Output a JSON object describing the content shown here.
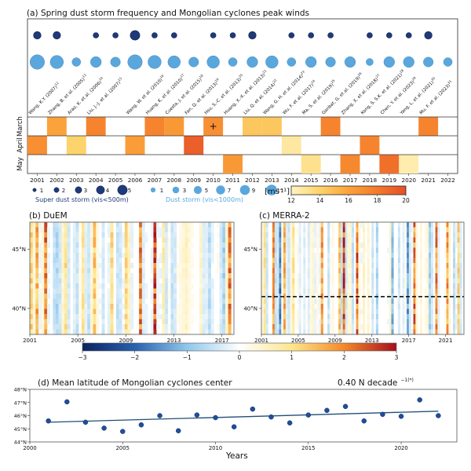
{
  "chart_data": [
    {
      "id": "a",
      "type": "heatmap",
      "title": "(a) Spring dust storm frequency and Mongolian cyclones peak winds",
      "years": [
        2001,
        2002,
        2003,
        2004,
        2005,
        2006,
        2007,
        2008,
        2009,
        2010,
        2011,
        2012,
        2013,
        2014,
        2015,
        2016,
        2017,
        2018,
        2019,
        2020,
        2021,
        2022
      ],
      "months": [
        "March",
        "April",
        "May"
      ],
      "peak_winds_ms": {
        "March": [
          null,
          16,
          null,
          17.5,
          null,
          null,
          17.5,
          16.5,
          null,
          17,
          null,
          14.5,
          14.5,
          null,
          null,
          17.5,
          null,
          null,
          null,
          null,
          17.5,
          null
        ],
        "April": [
          17,
          null,
          14,
          null,
          null,
          16.3,
          null,
          null,
          19.3,
          null,
          null,
          null,
          null,
          12.8,
          null,
          null,
          null,
          17.5,
          null,
          null,
          null,
          null
        ],
        "May": [
          null,
          null,
          null,
          null,
          null,
          null,
          null,
          null,
          null,
          null,
          16.5,
          null,
          null,
          null,
          13.2,
          null,
          17.3,
          null,
          18.5,
          12.5,
          null,
          null
        ]
      },
      "march_2010_marker": "+",
      "super_dust_storm_counts": [
        2,
        2,
        null,
        1,
        1,
        3,
        1,
        1,
        null,
        1,
        1,
        2,
        null,
        1,
        1,
        1,
        null,
        1,
        1,
        1,
        2,
        null
      ],
      "dust_storm_counts": [
        9,
        7,
        2,
        4,
        3,
        9,
        7,
        6,
        3,
        6,
        2,
        4,
        6,
        2,
        4,
        3,
        4,
        1,
        4,
        4,
        3,
        2
      ],
      "citations": [
        {
          "year": 2001,
          "label": "Wang, K.Y. (2007)",
          "ref": "12"
        },
        {
          "year": 2002,
          "label": "Zhang, B. et al. (2005)",
          "ref": "13"
        },
        {
          "year": 2003,
          "label": "Arao, K. et al. (2006)",
          "ref": "14"
        },
        {
          "year": 2004,
          "label": "Liu, J.-J. et al. (2007)",
          "ref": "15"
        },
        {
          "year": 2006,
          "label": "Wang, W. et al. (2010)",
          "ref": "16"
        },
        {
          "year": 2007,
          "label": "Huang, K. et al. (2010)",
          "ref": "17"
        },
        {
          "year": 2008,
          "label": "Cuesta, J. et al. (2015)",
          "ref": "18"
        },
        {
          "year": 2009,
          "label": "Fan, Q. et al. (2013)",
          "ref": "19"
        },
        {
          "year": 2010,
          "label": "Hsu, S.-C. et al. (2013)",
          "ref": "20"
        },
        {
          "year": 2011,
          "label": "Huang, X.-X. et al. (2013)",
          "ref": "21"
        },
        {
          "year": 2012,
          "label": "Liu, Q. et al. (2014)",
          "ref": "22"
        },
        {
          "year": 2013,
          "label": "Wang, G. H. et al. (2014)",
          "ref": "23"
        },
        {
          "year": 2014,
          "label": "Wu, F. et al. (2017)",
          "ref": "24"
        },
        {
          "year": 2015,
          "label": "Ma, S. et al. (2019)",
          "ref": "25"
        },
        {
          "year": 2016,
          "label": "Ganbat, G. et al. (2019)",
          "ref": "26"
        },
        {
          "year": 2017,
          "label": "Zhang, X. et al. (2018)",
          "ref": "27"
        },
        {
          "year": 2018,
          "label": "Kong, S. S.K. et al. (2021)",
          "ref": "28"
        },
        {
          "year": 2019,
          "label": "Chen, Y. et al. (2023)",
          "ref": "29"
        },
        {
          "year": 2020,
          "label": "Yang, L. et al. (2021)",
          "ref": "30"
        },
        {
          "year": 2021,
          "label": "Mu, F. et al. (2023)",
          "ref": "31"
        }
      ],
      "legend_super": {
        "sizes": [
          1,
          2,
          3,
          4,
          5
        ],
        "title": "Super dust storm (vis<500m)",
        "color": "#1f3a7a"
      },
      "legend_dust": {
        "sizes": [
          1,
          3,
          5,
          7,
          9,
          11
        ],
        "title": "Dust storm (vis<1000m)",
        "color": "#5aa7dd"
      },
      "colorbar": {
        "label": "[ms⁻¹]",
        "min": 12,
        "max": 20,
        "ticks": [
          12,
          14,
          16,
          18,
          20
        ],
        "colors": [
          "#fff5c4",
          "#fdd36b",
          "#fba33a",
          "#f47a2a",
          "#e4502a"
        ]
      }
    },
    {
      "id": "b",
      "type": "heatmap",
      "title": "(b) DuEM",
      "x_range": [
        2001,
        2018
      ],
      "x_ticks": [
        "2001",
        "2005",
        "2009",
        "2013",
        "2017"
      ],
      "y_ticks": [
        "40°N",
        "45°N"
      ],
      "y_range_deg": [
        37.8,
        47.3
      ],
      "anomaly_columns": [
        {
          "x": 2001.0,
          "mean": 1.3
        },
        {
          "x": 2001.5,
          "mean": 1.8
        },
        {
          "x": 2002.3,
          "mean": 2.3
        },
        {
          "x": 2002.8,
          "mean": -0.6
        },
        {
          "x": 2003.2,
          "mean": -0.8
        },
        {
          "x": 2003.8,
          "mean": 1.2
        },
        {
          "x": 2005.2,
          "mean": 1.0
        },
        {
          "x": 2006.3,
          "mean": 1.5
        },
        {
          "x": 2007.6,
          "mean": 1.2
        },
        {
          "x": 2008.9,
          "mean": 1.2
        },
        {
          "x": 2010.1,
          "mean": 2.4
        },
        {
          "x": 2011.3,
          "mean": 2.8
        },
        {
          "x": 2012.0,
          "mean": 0.8
        },
        {
          "x": 2014.0,
          "mean": 0.6
        },
        {
          "x": 2015.8,
          "mean": -0.7
        },
        {
          "x": 2017.0,
          "mean": -0.9
        },
        {
          "x": 2017.6,
          "mean": 2.2
        }
      ]
    },
    {
      "id": "c",
      "type": "heatmap",
      "title": "(c) MERRA-2",
      "x_range": [
        2001,
        2023
      ],
      "x_ticks": [
        "2001",
        "2005",
        "2009",
        "2013",
        "2017",
        "2021"
      ],
      "y_ticks": [
        "40°N",
        "45°N"
      ],
      "y_range_deg": [
        37.8,
        47.3
      ],
      "reference_latitude_deg": 41.0,
      "anomaly_columns": [
        {
          "x": 2001.2,
          "mean": 1.1
        },
        {
          "x": 2002.2,
          "mean": 2.0
        },
        {
          "x": 2002.8,
          "mean": -2.0
        },
        {
          "x": 2003.5,
          "mean": 1.8
        },
        {
          "x": 2004.3,
          "mean": 1.0
        },
        {
          "x": 2007.5,
          "mean": 2.0
        },
        {
          "x": 2009.4,
          "mean": 1.6
        },
        {
          "x": 2009.9,
          "mean": 2.8
        },
        {
          "x": 2011.4,
          "mean": 2.6
        },
        {
          "x": 2013.5,
          "mean": -0.8
        },
        {
          "x": 2015.2,
          "mean": -1.3
        },
        {
          "x": 2016.9,
          "mean": -1.6
        },
        {
          "x": 2017.5,
          "mean": 2.4
        },
        {
          "x": 2019.2,
          "mean": -1.0
        },
        {
          "x": 2019.8,
          "mean": 2.2
        },
        {
          "x": 2021.0,
          "mean": 2.0
        },
        {
          "x": 2022.3,
          "mean": 1.3
        }
      ]
    },
    {
      "id": "bc-colorbar",
      "type": "colorbar",
      "min": -3,
      "max": 3,
      "ticks": [
        "−3",
        "−2",
        "−1",
        "0",
        "1",
        "2",
        "3"
      ]
    },
    {
      "id": "d",
      "type": "scatter",
      "title": "(d) Mean latitude of Mongolian cyclones center",
      "annotation": "0.40 N decade",
      "annotation_sup": "−1(*)",
      "xlabel": "Years",
      "xlim": [
        2000,
        2023
      ],
      "ylim": [
        44,
        48
      ],
      "x_ticks": [
        2000,
        2005,
        2010,
        2015,
        2020
      ],
      "y_ticks": [
        "44°N",
        "45°N",
        "46°N",
        "47°N",
        "48°N"
      ],
      "x": [
        2001,
        2002,
        2003,
        2004,
        2005,
        2006,
        2007,
        2008,
        2009,
        2010,
        2011,
        2012,
        2013,
        2014,
        2015,
        2016,
        2017,
        2018,
        2019,
        2020,
        2021,
        2022
      ],
      "y": [
        45.6,
        47.05,
        45.5,
        45.05,
        44.8,
        45.3,
        46.0,
        44.85,
        46.05,
        45.85,
        45.15,
        46.5,
        45.9,
        45.45,
        46.05,
        46.4,
        46.7,
        45.6,
        46.1,
        45.95,
        47.2,
        46.0
      ],
      "trend": {
        "start": [
          2001,
          45.5
        ],
        "end": [
          2022,
          46.34
        ],
        "slope_per_decade": 0.4
      },
      "point_color": "#1f4e9c",
      "line_color": "#1f4e79"
    }
  ]
}
